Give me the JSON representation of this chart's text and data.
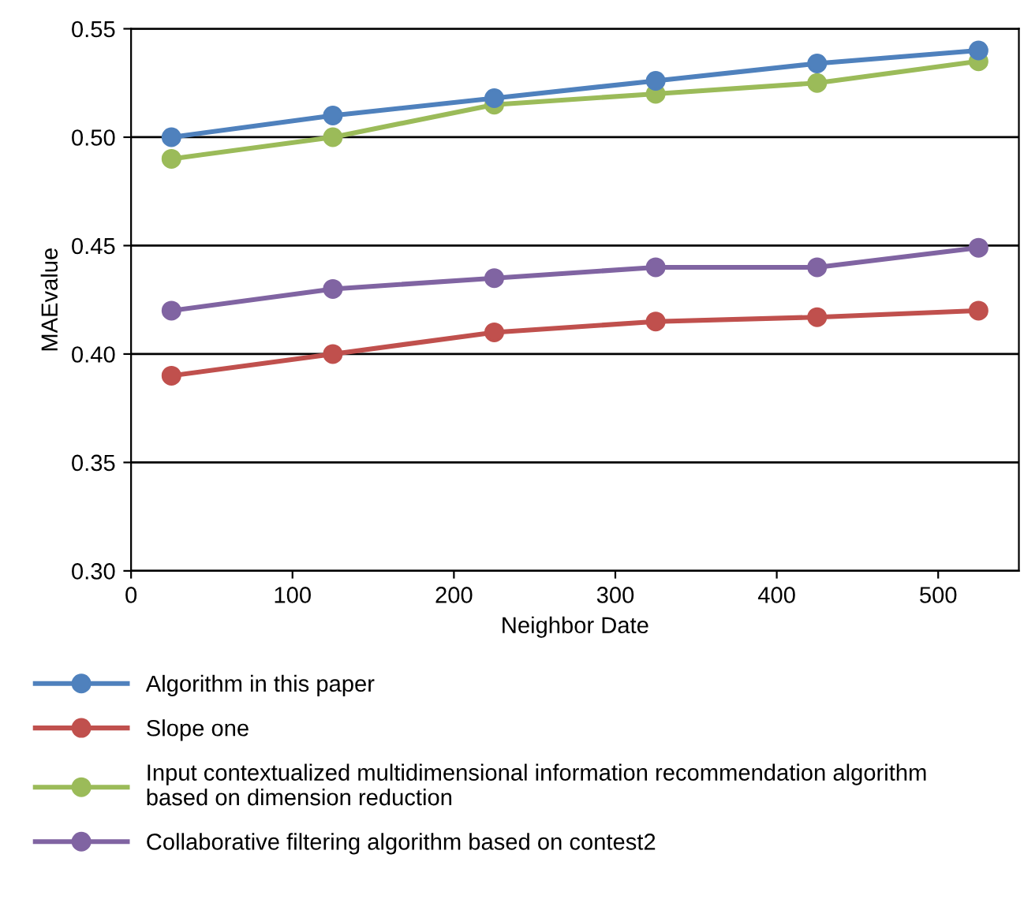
{
  "chart_data": {
    "type": "line",
    "xlabel": "Neighbor Date",
    "ylabel": "MAEvalue",
    "x": [
      25,
      125,
      225,
      325,
      425,
      525
    ],
    "series": [
      {
        "name": "Algorithm in this paper",
        "color": "#4f81bd",
        "values": [
          0.5,
          0.51,
          0.518,
          0.526,
          0.534,
          0.54
        ]
      },
      {
        "name": "Slope one",
        "color": "#c0504d",
        "values": [
          0.39,
          0.4,
          0.41,
          0.415,
          0.417,
          0.42
        ]
      },
      {
        "name": "Input contextualized multidimensional information recommendation algorithm\nbased on dimension reduction",
        "color": "#9bbb59",
        "values": [
          0.49,
          0.5,
          0.515,
          0.52,
          0.525,
          0.535
        ]
      },
      {
        "name": "Collaborative filtering algorithm based on contest2",
        "color": "#8064a2",
        "values": [
          0.42,
          0.43,
          0.435,
          0.44,
          0.44,
          0.449
        ]
      }
    ],
    "xlim": [
      0,
      550
    ],
    "xticks": [
      0,
      100,
      200,
      300,
      400,
      500
    ],
    "ylim": [
      0.3,
      0.55
    ],
    "yticks": [
      {
        "value": 0.3,
        "label": "0.30"
      },
      {
        "value": 0.35,
        "label": "0.35"
      },
      {
        "value": 0.4,
        "label": "0.40"
      },
      {
        "value": 0.45,
        "label": "0.45"
      },
      {
        "value": 0.5,
        "label": "0.50"
      },
      {
        "value": 0.55,
        "label": "0.55"
      }
    ],
    "grid": "y",
    "legend": "bottom",
    "marker": "circle",
    "line_style": "solid"
  }
}
